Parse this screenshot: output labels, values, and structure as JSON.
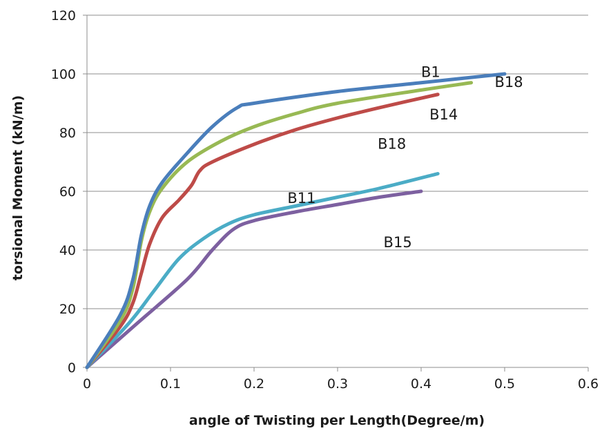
{
  "chart_data": {
    "type": "line",
    "title": "",
    "xlabel": "angle of Twisting per Length(Degree/m)",
    "ylabel": "torsional Moment (kN/m)",
    "xlim": [
      0,
      0.6
    ],
    "ylim": [
      0,
      120
    ],
    "xticks": [
      0,
      0.1,
      0.2,
      0.3,
      0.4,
      0.5,
      0.6
    ],
    "xtick_labels": [
      "0",
      "0.1",
      "0.2",
      "0.3",
      "0.4",
      "0.5",
      "0.6"
    ],
    "yticks": [
      0,
      20,
      40,
      60,
      80,
      100,
      120
    ],
    "ytick_labels": [
      "0",
      "20",
      "40",
      "60",
      "80",
      "100",
      "120"
    ],
    "grid": "horizontal",
    "legend": "none",
    "series": [
      {
        "color": "#4A7EBB",
        "points": [
          [
            0,
            0
          ],
          [
            0.04,
            18
          ],
          [
            0.055,
            30
          ],
          [
            0.065,
            45
          ],
          [
            0.075,
            55
          ],
          [
            0.09,
            63
          ],
          [
            0.12,
            73
          ],
          [
            0.15,
            82
          ],
          [
            0.18,
            88.5
          ],
          [
            0.2,
            90
          ],
          [
            0.3,
            94
          ],
          [
            0.4,
            97
          ],
          [
            0.5,
            100
          ]
        ]
      },
      {
        "color": "#98B954",
        "points": [
          [
            0,
            0
          ],
          [
            0.04,
            16
          ],
          [
            0.055,
            27
          ],
          [
            0.065,
            43
          ],
          [
            0.075,
            53
          ],
          [
            0.09,
            61
          ],
          [
            0.12,
            70
          ],
          [
            0.16,
            77
          ],
          [
            0.2,
            82
          ],
          [
            0.25,
            86.5
          ],
          [
            0.3,
            90
          ],
          [
            0.4,
            94.5
          ],
          [
            0.46,
            97
          ]
        ]
      },
      {
        "color": "#BE4B48",
        "points": [
          [
            0,
            0
          ],
          [
            0.04,
            14
          ],
          [
            0.055,
            22
          ],
          [
            0.065,
            32
          ],
          [
            0.075,
            42
          ],
          [
            0.09,
            51
          ],
          [
            0.11,
            57
          ],
          [
            0.125,
            62
          ],
          [
            0.135,
            67
          ],
          [
            0.15,
            70
          ],
          [
            0.2,
            76
          ],
          [
            0.25,
            81
          ],
          [
            0.3,
            85
          ],
          [
            0.35,
            88.5
          ],
          [
            0.42,
            93
          ]
        ]
      },
      {
        "color": "#4BACC6",
        "points": [
          [
            0,
            0
          ],
          [
            0.05,
            15
          ],
          [
            0.08,
            26
          ],
          [
            0.11,
            37
          ],
          [
            0.14,
            44
          ],
          [
            0.17,
            49
          ],
          [
            0.2,
            52
          ],
          [
            0.25,
            55
          ],
          [
            0.3,
            58
          ],
          [
            0.35,
            61
          ],
          [
            0.42,
            66
          ]
        ]
      },
      {
        "color": "#7D60A0",
        "points": [
          [
            0,
            0
          ],
          [
            0.06,
            15
          ],
          [
            0.12,
            30
          ],
          [
            0.15,
            40
          ],
          [
            0.175,
            47
          ],
          [
            0.2,
            50
          ],
          [
            0.25,
            53
          ],
          [
            0.3,
            55.5
          ],
          [
            0.35,
            58
          ],
          [
            0.4,
            60
          ]
        ]
      }
    ],
    "annotations": [
      {
        "text": "B1",
        "x": 0.4,
        "y": 99
      },
      {
        "text": "B18",
        "x": 0.488,
        "y": 95.5
      },
      {
        "text": "B14",
        "x": 0.41,
        "y": 84.5
      },
      {
        "text": "B18",
        "x": 0.348,
        "y": 74.5
      },
      {
        "text": "B11",
        "x": 0.24,
        "y": 56
      },
      {
        "text": "B15",
        "x": 0.355,
        "y": 41
      }
    ]
  }
}
